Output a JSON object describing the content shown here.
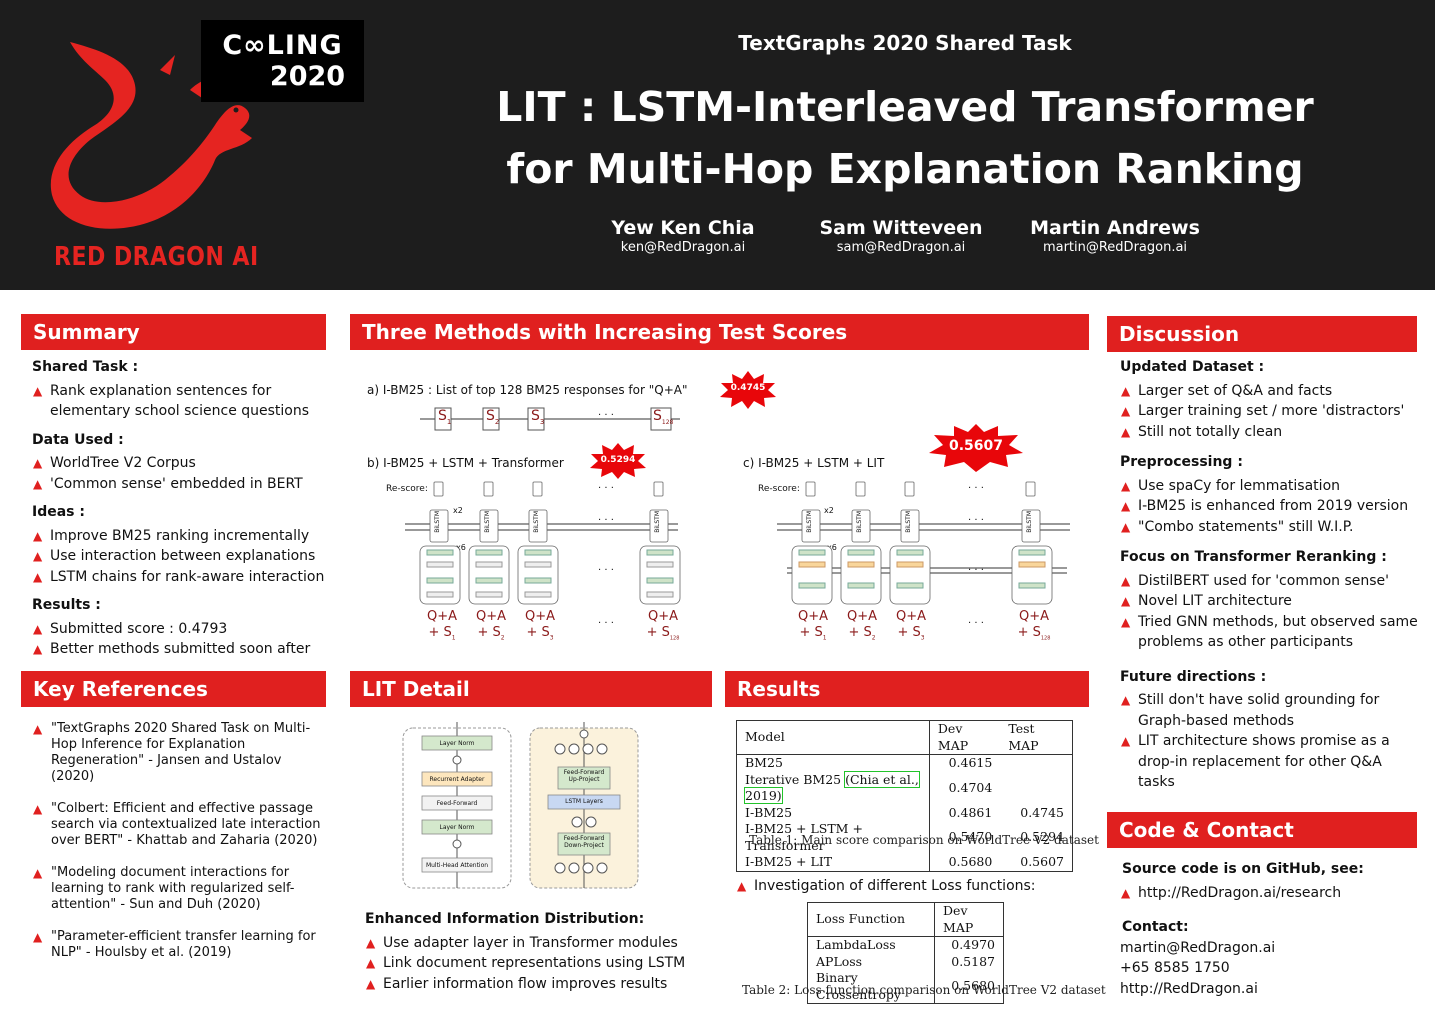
{
  "header": {
    "conference_logo_line1": "C∞LING",
    "conference_logo_line2": "2020",
    "company_logo_text": "RED DRAGON AI",
    "subtitle": "TextGraphs 2020 Shared Task",
    "title_line1": "LIT : LSTM-Interleaved Transformer",
    "title_line2": "for Multi-Hop Explanation Ranking",
    "authors": [
      {
        "name": "Yew Ken Chia",
        "email": "ken@RedDragon.ai"
      },
      {
        "name": "Sam Witteveen",
        "email": "sam@RedDragon.ai"
      },
      {
        "name": "Martin Andrews",
        "email": "martin@RedDragon.ai"
      }
    ],
    "colors": {
      "background": "#1d1d1d",
      "accent": "#e0201f"
    }
  },
  "summary": {
    "title": "Summary",
    "shared_task_heading": "Shared Task :",
    "shared_task_items": [
      "Rank explanation sentences for elementary school science questions"
    ],
    "data_heading": "Data Used :",
    "data_items": [
      "WorldTree V2 Corpus",
      "'Common sense' embedded in BERT"
    ],
    "ideas_heading": "Ideas :",
    "ideas_items": [
      "Improve BM25 ranking incrementally",
      "Use interaction between explanations",
      "LSTM chains for rank-aware interaction"
    ],
    "results_heading": "Results :",
    "results_items": [
      "Submitted score : 0.4793",
      "Better methods submitted soon after"
    ]
  },
  "key_references": {
    "title": "Key References",
    "items": [
      "\"TextGraphs 2020 Shared Task on Multi-Hop Inference for Explanation Regeneration\" - Jansen and Ustalov (2020)",
      "\"Colbert: Efficient and effective passage search via contextualized late interaction over BERT\" - Khattab and Zaharia (2020)",
      "\"Modeling document interactions for learning to rank with regularized self-attention\" - Sun and Duh (2020)",
      "\"Parameter-efficient transfer learning for NLP\" - Houlsby et al. (2019)"
    ]
  },
  "methods": {
    "title": "Three Methods with Increasing Test Scores",
    "a_label": "a)  I-BM25 : List of top 128 BM25 responses for \"Q+A\"",
    "a_score": "0.4745",
    "b_label": "b)  I-BM25 + LSTM + Transformer",
    "b_score": "0.5294",
    "c_label": "c)  I-BM25 + LSTM + LIT",
    "c_score": "0.5607",
    "rescore_label": "Re-score:",
    "bilstm_label": "BiLSTM",
    "x2_label": "x2",
    "x6_label": "x6",
    "ellipsis": "· · ·",
    "s_symbol": "S",
    "s_subscripts": [
      "1",
      "2",
      "3",
      "128"
    ],
    "qa_label": "Q+A",
    "plus_s": "+ S"
  },
  "lit_detail": {
    "title": "LIT Detail",
    "left_blocks": [
      "Layer Norm",
      "Recurrent Adapter",
      "Feed-Forward",
      "Layer Norm",
      "Multi-Head Attention"
    ],
    "right_blocks": [
      "Feed-Forward Up-Project",
      "LSTM Layers",
      "Feed-Forward Down-Project"
    ],
    "plus_symbol": "+",
    "subheading": "Enhanced Information Distribution:",
    "items": [
      "Use adapter layer in Transformer modules",
      "Link document representations using LSTM",
      "Earlier information flow improves results"
    ]
  },
  "results": {
    "title": "Results",
    "table1": {
      "headers": [
        "Model",
        "Dev MAP",
        "Test MAP"
      ],
      "rows": [
        {
          "model": "BM25",
          "dev": "0.4615",
          "test": ""
        },
        {
          "model_prefix": "Iterative BM25 ",
          "model_cite": "(Chia et al., 2019)",
          "dev": "0.4704",
          "test": ""
        },
        {
          "model": "I-BM25",
          "dev": "0.4861",
          "test": "0.4745"
        },
        {
          "model": "I-BM25 + LSTM + Transformer",
          "dev": "0.5470",
          "test": "0.5294"
        },
        {
          "model": "I-BM25 + LIT",
          "dev": "0.5680",
          "test": "0.5607"
        }
      ],
      "caption": "Table 1: Main score comparison on WorldTree V2 dataset"
    },
    "loss_intro": "Investigation of different Loss functions:",
    "table2": {
      "headers": [
        "Loss Function",
        "Dev MAP"
      ],
      "rows": [
        {
          "loss": "LambdaLoss",
          "dev": "0.4970"
        },
        {
          "loss": "APLoss",
          "dev": "0.5187"
        },
        {
          "loss": "Binary Crossentropy",
          "dev": "0.5680"
        }
      ],
      "caption": "Table 2: Loss function comparison on WorldTree V2 dataset"
    }
  },
  "discussion": {
    "title": "Discussion",
    "updated_heading": "Updated Dataset :",
    "updated_items": [
      "Larger set of Q&A and facts",
      "Larger training set / more 'distractors'",
      "Still not totally clean"
    ],
    "pre_heading": "Preprocessing :",
    "pre_items": [
      "Use spaCy for lemmatisation",
      "I-BM25 is enhanced from 2019 version",
      "\"Combo statements\" still W.I.P."
    ],
    "focus_heading": "Focus on Transformer Reranking :",
    "focus_items": [
      "DistilBERT used for 'common sense'",
      "Novel LIT architecture",
      "Tried GNN methods, but observed same problems as other participants"
    ],
    "future_heading": "Future directions :",
    "future_items": [
      "Still don't have solid grounding for Graph-based methods",
      "LIT architecture shows promise as a drop-in replacement for other Q&A tasks"
    ]
  },
  "contact": {
    "title": "Code & Contact",
    "source_heading": "Source code is on GitHub, see:",
    "source_url": "http://RedDragon.ai/research",
    "contact_heading": "Contact:",
    "email": "martin@RedDragon.ai",
    "phone": "+65 8585 1750",
    "website": "http://RedDragon.ai"
  }
}
